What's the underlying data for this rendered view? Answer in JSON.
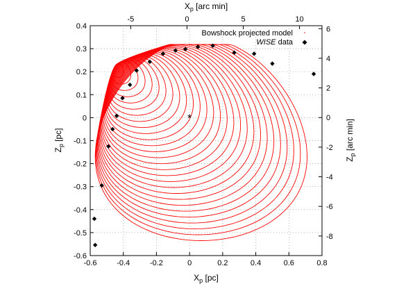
{
  "chart_data": {
    "type": "scatter",
    "xlim": [
      -0.6,
      0.8
    ],
    "ylim": [
      -0.6,
      0.4
    ],
    "x2lim": [
      -8.6,
      12.0
    ],
    "y2lim": [
      -9.32,
      6.2
    ],
    "xlabel": {
      "main": "X",
      "sub": "p",
      "unit": " [pc]"
    },
    "ylabel": {
      "main": "Z",
      "sub": "p",
      "unit": " [pc]"
    },
    "x2label": {
      "main": "X",
      "sub": "p",
      "unit": " [arc min]"
    },
    "y2label": {
      "main": "Z",
      "sub": "p",
      "unit": " [arc min]"
    },
    "x_ticks": [
      "-0.6",
      "-0.4",
      "-0.2",
      "0",
      "0.2",
      "0.4",
      "0.6",
      "0.8"
    ],
    "y_ticks": [
      "-0.6",
      "-0.5",
      "-0.4",
      "-0.3",
      "-0.2",
      "-0.1",
      "0",
      "0.1",
      "0.2",
      "0.3",
      "0.4"
    ],
    "x2_ticks": [
      "-5",
      "0",
      "5",
      "10"
    ],
    "y2_ticks": [
      "-8",
      "-6",
      "-4",
      "-2",
      "0",
      "2",
      "4",
      "6"
    ],
    "grid": true,
    "legend_position": "top-right",
    "series": [
      {
        "name": "Bowshock projected model",
        "style": "red dotted curves",
        "color": "#ff0000",
        "n_curves": 28
      },
      {
        "name": "WISE data",
        "name_italic": "WISE",
        "name_rest": " data",
        "style": "black diamonds",
        "color": "#000000",
        "points": [
          [
            -0.57,
            -0.554
          ],
          [
            -0.575,
            -0.44
          ],
          [
            -0.53,
            -0.295
          ],
          [
            -0.49,
            -0.125
          ],
          [
            -0.465,
            -0.05
          ],
          [
            -0.44,
            0.008
          ],
          [
            -0.405,
            0.085
          ],
          [
            -0.36,
            0.143
          ],
          [
            -0.32,
            0.205
          ],
          [
            -0.24,
            0.243
          ],
          [
            -0.16,
            0.278
          ],
          [
            -0.085,
            0.292
          ],
          [
            -0.025,
            0.298
          ],
          [
            0.05,
            0.308
          ],
          [
            0.14,
            0.313
          ],
          [
            0.27,
            0.283
          ],
          [
            0.39,
            0.278
          ],
          [
            0.5,
            0.235
          ],
          [
            0.75,
            0.19
          ]
        ]
      }
    ],
    "star": {
      "x": 0.0,
      "y": 0.0,
      "symbol": "*"
    }
  }
}
